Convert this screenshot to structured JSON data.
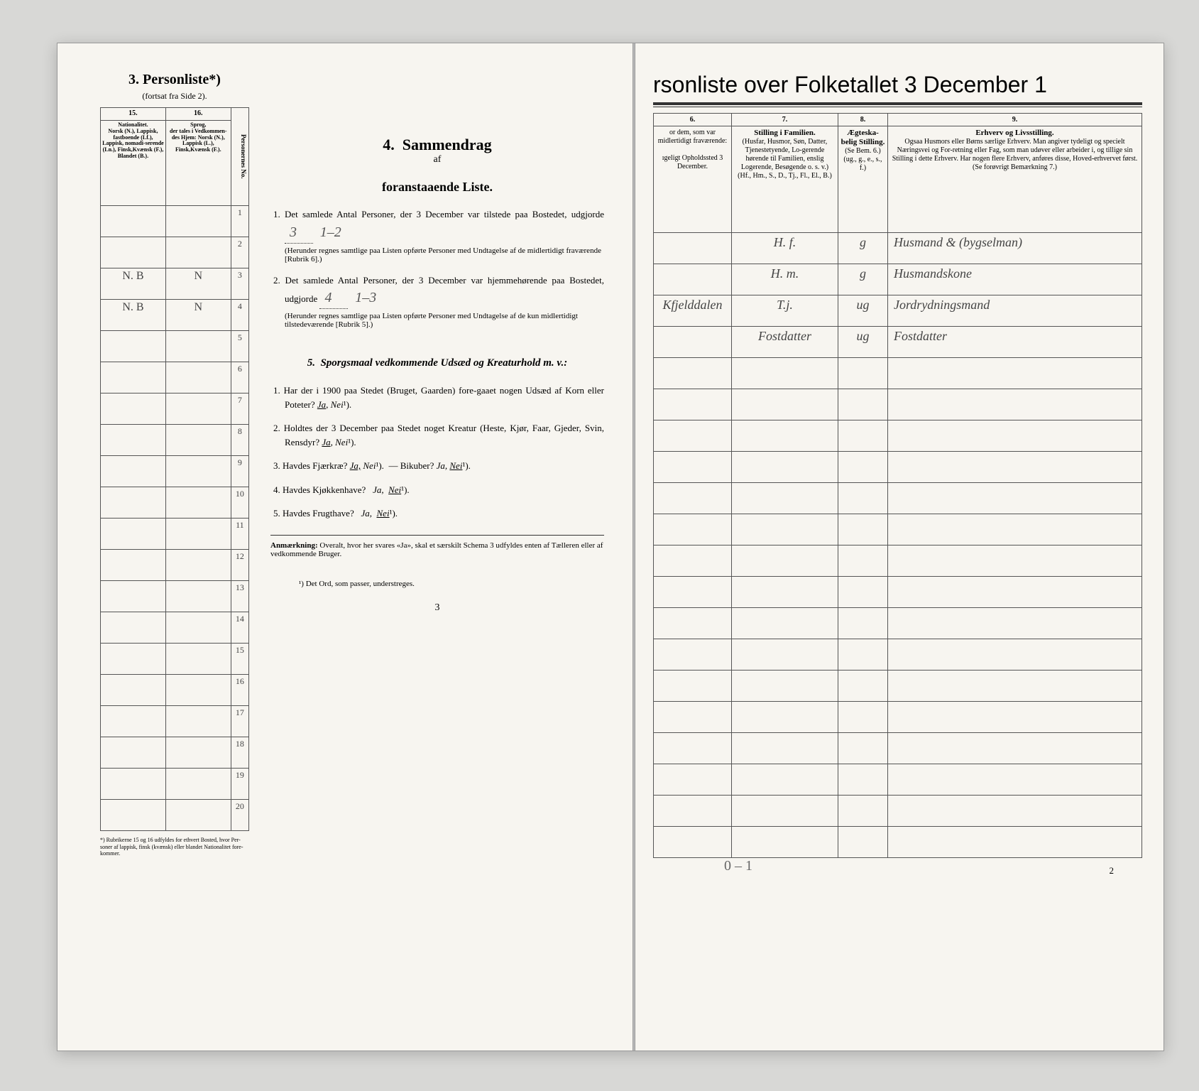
{
  "left": {
    "sectionNum": "3.",
    "sectionTitle": "Personliste*)",
    "sectionSub": "(fortsat fra Side 2).",
    "cols": {
      "c15": "15.",
      "c16": "16.",
      "h15_title": "Nationalitet.",
      "h15_body": "Norsk (N.), Lappisk, fastboende (Lf.), Lappisk, nomadi-serende (Ln.), Finsk,Kvænsk (F.), Blandet (B.).",
      "h16_title": "Sprog,",
      "h16_body": "der tales i Vedkommen-des Hjem: Norsk (N.), Lappisk (L.), Finsk,Kvænsk (F.).",
      "hNum": "Personernes No."
    },
    "rows": [
      {
        "n": "1",
        "c15": "",
        "c16": ""
      },
      {
        "n": "2",
        "c15": "",
        "c16": ""
      },
      {
        "n": "3",
        "c15": "N. B",
        "c16": "N"
      },
      {
        "n": "4",
        "c15": "N. B",
        "c16": "N"
      },
      {
        "n": "5",
        "c15": "",
        "c16": ""
      },
      {
        "n": "6",
        "c15": "",
        "c16": ""
      },
      {
        "n": "7",
        "c15": "",
        "c16": ""
      },
      {
        "n": "8",
        "c15": "",
        "c16": ""
      },
      {
        "n": "9",
        "c15": "",
        "c16": ""
      },
      {
        "n": "10",
        "c15": "",
        "c16": ""
      },
      {
        "n": "11",
        "c15": "",
        "c16": ""
      },
      {
        "n": "12",
        "c15": "",
        "c16": ""
      },
      {
        "n": "13",
        "c15": "",
        "c16": ""
      },
      {
        "n": "14",
        "c15": "",
        "c16": ""
      },
      {
        "n": "15",
        "c15": "",
        "c16": ""
      },
      {
        "n": "16",
        "c15": "",
        "c16": ""
      },
      {
        "n": "17",
        "c15": "",
        "c16": ""
      },
      {
        "n": "18",
        "c15": "",
        "c16": ""
      },
      {
        "n": "19",
        "c15": "",
        "c16": ""
      },
      {
        "n": "20",
        "c15": "",
        "c16": ""
      }
    ],
    "footnote": "*) Rubrikerne 15 og 16 udfyldes for ethvert Bosted, hvor Per-soner af lappisk, finsk (kvænsk) eller blandet Nationalitet fore-kommer.",
    "pageNum": "3"
  },
  "center": {
    "num4": "4.",
    "title4a": "Sammendrag",
    "title4b": "af",
    "title4c": "foranstaaende Liste.",
    "item1": "1. Det samlede Antal Personer, der 3 December var tilstede paa Bostedet, udgjorde",
    "item1_val": "3",
    "item1_hand": "1–2",
    "item1_sub": "(Herunder regnes samtlige paa Listen opførte Personer med Undtagelse af de midlertidigt fraværende [Rubrik 6].)",
    "item2": "2. Det samlede Antal Personer, der 3 December var hjemmehørende paa Bostedet, udgjorde",
    "item2_val": "4",
    "item2_hand": "1–3",
    "item2_sub": "(Herunder regnes samtlige paa Listen opførte Personer med Undtagelse af de kun midlertidigt tilstedeværende [Rubrik 5].)",
    "num5": "5.",
    "title5": "Sporgsmaal vedkommende Udsæd og Kreaturhold m. v.:",
    "s1": "1. Har der i 1900 paa Stedet (Bruget, Gaarden) fore-gaaet nogen Udsæd af Korn eller Poteter?",
    "s2": "2. Holdtes der 3 December paa Stedet noget Kreatur (Heste, Kjør, Faar, Gjeder, Svin, Rensdyr?",
    "s3": "3. Havdes Fjærkræ?",
    "s3b": "— Bikuber?",
    "s4": "4. Havdes Kjøkkenhave?",
    "s5": "5. Havdes Frugthave?",
    "ja": "Ja,",
    "nei": "Nei",
    "nei_sup": "¹).",
    "anm_label": "Anmærkning:",
    "anm": "Overalt, hvor her svares «Ja», skal et særskilt Schema 3 udfyldes enten af Tælleren eller af vedkommende Bruger.",
    "fn_center": "¹) Det Ord, som passer, understreges."
  },
  "right": {
    "title": "rsonliste over Folketallet 3 December 1",
    "cols": {
      "c6": "6.",
      "c7": "7.",
      "c8": "8.",
      "c9": "9.",
      "h6a": "or dem, som var midlertidigt fraværende:",
      "h6b": "ıgeligt Opholdssted 3 December.",
      "h7_title": "Stilling i Familien.",
      "h7_body": "(Husfar, Husmor, Søn, Datter, Tjenestetyende, Lo-gerende hørende til Familien, enslig Logerende, Besøgende o. s. v.)",
      "h7_foot": "(Hf., Hm., S., D., Tj., Fl., El., B.)",
      "h8_title": "Ægteska-belig Stilling.",
      "h8_foot": "(Se Bem. 6.) (ug., g., e., s., f.)",
      "h9_title": "Erhverv og Livsstilling.",
      "h9_body": "Ogsaa Husmors eller Børns særlige Erhverv. Man angiver tydeligt og specielt Næringsvei og For-retning eller Fag, som man udøver eller arbeider i, og tillige sin Stilling i dette Erhverv. Har nogen flere Erhverv, anføres disse, Hoved-erhvervet først.",
      "h9_foot": "(Se forøvrigt Bemærkning 7.)"
    },
    "rows": [
      {
        "c6": "",
        "c7": "H. f.",
        "c8": "g",
        "c9": "Husmand & (bygselman)"
      },
      {
        "c6": "",
        "c7": "H. m.",
        "c8": "g",
        "c9": "Husmandskone"
      },
      {
        "c6": "Kfjelddalen",
        "c7": "T.j.",
        "c8": "ug",
        "c9": "Jordrydningsmand"
      },
      {
        "c6": "",
        "c7": "Fostdatter",
        "c8": "ug",
        "c9": "Fostdatter"
      },
      {
        "c6": "",
        "c7": "",
        "c8": "",
        "c9": ""
      },
      {
        "c6": "",
        "c7": "",
        "c8": "",
        "c9": ""
      },
      {
        "c6": "",
        "c7": "",
        "c8": "",
        "c9": ""
      },
      {
        "c6": "",
        "c7": "",
        "c8": "",
        "c9": ""
      },
      {
        "c6": "",
        "c7": "",
        "c8": "",
        "c9": ""
      },
      {
        "c6": "",
        "c7": "",
        "c8": "",
        "c9": ""
      },
      {
        "c6": "",
        "c7": "",
        "c8": "",
        "c9": ""
      },
      {
        "c6": "",
        "c7": "",
        "c8": "",
        "c9": ""
      },
      {
        "c6": "",
        "c7": "",
        "c8": "",
        "c9": ""
      },
      {
        "c6": "",
        "c7": "",
        "c8": "",
        "c9": ""
      },
      {
        "c6": "",
        "c7": "",
        "c8": "",
        "c9": ""
      },
      {
        "c6": "",
        "c7": "",
        "c8": "",
        "c9": ""
      },
      {
        "c6": "",
        "c7": "",
        "c8": "",
        "c9": ""
      },
      {
        "c6": "",
        "c7": "",
        "c8": "",
        "c9": ""
      },
      {
        "c6": "",
        "c7": "",
        "c8": "",
        "c9": ""
      },
      {
        "c6": "",
        "c7": "",
        "c8": "",
        "c9": ""
      }
    ],
    "hand_bottom": "0 – 1",
    "pageNum": "2"
  },
  "colors": {
    "paper": "#f7f5f0",
    "ink": "#222222",
    "handwriting": "#555555",
    "border": "#555555"
  }
}
